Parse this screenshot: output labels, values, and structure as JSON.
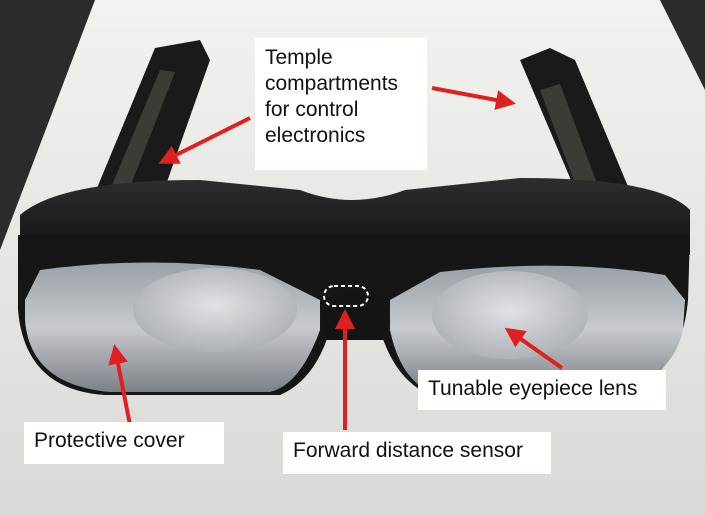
{
  "labels": {
    "temple": "Temple\ncompartments\nfor control\nelectronics",
    "lens": "Tunable eyepiece lens",
    "cover": "Protective cover",
    "sensor": "Forward distance sensor"
  },
  "colors": {
    "arrow": "#e02020",
    "frame": "#1c1c1c",
    "paper": "#e9e9e6",
    "backdrop": "#2b2b2b",
    "lens": "#c9ccd0",
    "sensor_outline": "#ffffff"
  }
}
